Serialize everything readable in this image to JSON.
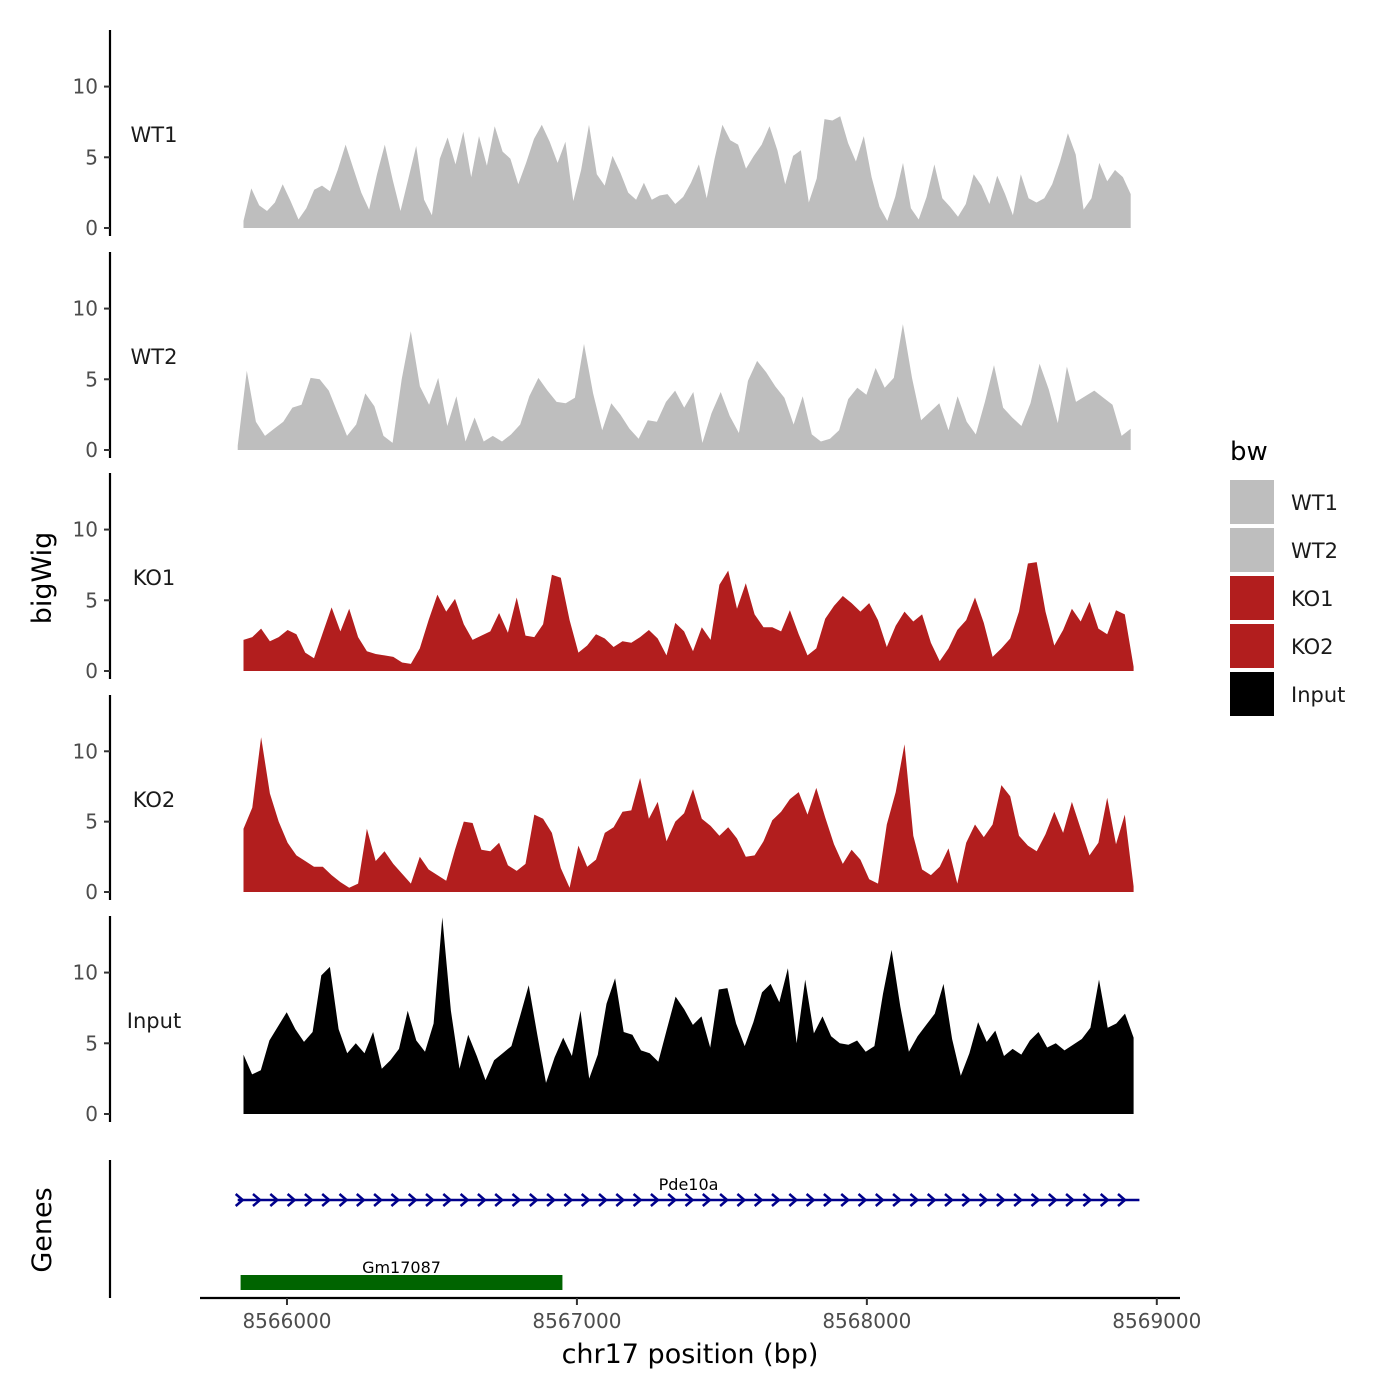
{
  "chart_data": {
    "type": "area",
    "xlabel": "chr17 position (bp)",
    "ylabel": "bigWig",
    "genes_label": "Genes",
    "xlim": [
      8565700,
      8569080
    ],
    "xticks": [
      "8566000",
      "8567000",
      "8568000",
      "8569000"
    ],
    "xtick_values": [
      8566000,
      8567000,
      8568000,
      8569000
    ],
    "ylim": [
      0,
      14
    ],
    "yticks": [
      "0",
      "5",
      "10"
    ],
    "ytick_values": [
      0,
      5,
      10
    ],
    "grid": false,
    "legend": {
      "title": "bw",
      "position": "right",
      "entries": [
        {
          "label": "WT1",
          "color": "#bebebe"
        },
        {
          "label": "WT2",
          "color": "#bebebe"
        },
        {
          "label": "KO1",
          "color": "#b21e1e"
        },
        {
          "label": "KO2",
          "color": "#b21e1e"
        },
        {
          "label": "Input",
          "color": "#000000"
        }
      ]
    },
    "series": [
      {
        "name": "WT1",
        "color": "#bebebe",
        "x_start": 8565850,
        "x_end": 8568910,
        "values": [
          0.5,
          2.8,
          1.6,
          1.2,
          1.8,
          3.1,
          1.9,
          0.6,
          1.4,
          2.7,
          3.0,
          2.6,
          4.1,
          5.9,
          4.2,
          2.5,
          1.3,
          3.8,
          5.9,
          3.4,
          1.2,
          3.5,
          5.8,
          2.0,
          0.9,
          4.9,
          6.4,
          4.5,
          6.8,
          3.6,
          6.5,
          4.4,
          7.2,
          5.4,
          4.9,
          3.1,
          4.6,
          6.3,
          7.3,
          6.1,
          4.6,
          6.1,
          1.9,
          4.1,
          7.3,
          3.8,
          3.0,
          5.1,
          3.9,
          2.5,
          2.0,
          3.2,
          2.0,
          2.3,
          2.4,
          1.7,
          2.2,
          3.2,
          4.5,
          2.1,
          4.9,
          7.3,
          6.2,
          5.9,
          4.2,
          5.1,
          5.9,
          7.2,
          5.5,
          3.1,
          5.1,
          5.5,
          1.8,
          3.5,
          7.7,
          7.6,
          7.9,
          6.0,
          4.7,
          6.5,
          3.6,
          1.5,
          0.5,
          2.2,
          4.6,
          1.4,
          0.6,
          2.2,
          4.5,
          2.1,
          1.5,
          0.8,
          1.7,
          3.8,
          3.0,
          1.7,
          3.7,
          2.4,
          0.9,
          3.8,
          2.1,
          1.8,
          2.1,
          3.1,
          4.7,
          6.7,
          5.2,
          1.3,
          2.1,
          4.6,
          3.3,
          4.1,
          3.6,
          2.4
        ]
      },
      {
        "name": "WT2",
        "color": "#bebebe",
        "x_start": 8565830,
        "x_end": 8568910,
        "values": [
          0.3,
          5.6,
          2.0,
          1.0,
          1.5,
          2.0,
          3.0,
          3.2,
          5.1,
          5.0,
          4.2,
          2.6,
          1.0,
          1.8,
          4.0,
          3.1,
          1.0,
          0.5,
          5.0,
          8.4,
          4.5,
          3.2,
          5.1,
          1.7,
          3.8,
          0.6,
          2.3,
          0.6,
          1.0,
          0.6,
          1.1,
          1.8,
          3.8,
          5.1,
          4.2,
          3.4,
          3.3,
          3.7,
          7.5,
          4.0,
          1.4,
          3.3,
          2.5,
          1.5,
          0.8,
          2.1,
          2.0,
          3.4,
          4.2,
          3.0,
          4.1,
          0.5,
          2.6,
          4.1,
          2.4,
          1.2,
          4.9,
          6.3,
          5.5,
          4.5,
          3.7,
          1.8,
          3.8,
          1.1,
          0.6,
          0.8,
          1.4,
          3.6,
          4.4,
          3.9,
          5.8,
          4.4,
          5.1,
          8.9,
          5.1,
          2.1,
          2.7,
          3.3,
          1.4,
          3.8,
          2.0,
          1.1,
          3.4,
          6.0,
          3.0,
          2.3,
          1.7,
          3.3,
          6.1,
          4.3,
          1.9,
          5.9,
          3.4,
          3.8,
          4.2,
          3.7,
          3.2,
          1.0,
          1.5
        ]
      },
      {
        "name": "KO1",
        "color": "#b21e1e",
        "x_start": 8565850,
        "x_end": 8568920,
        "values": [
          2.2,
          2.4,
          3.0,
          2.1,
          2.4,
          2.9,
          2.6,
          1.3,
          0.9,
          2.7,
          4.5,
          2.8,
          4.4,
          2.4,
          1.4,
          1.2,
          1.1,
          1.0,
          0.6,
          0.5,
          1.6,
          3.6,
          5.4,
          4.2,
          5.1,
          3.3,
          2.2,
          2.5,
          2.8,
          4.1,
          2.7,
          5.2,
          2.5,
          2.4,
          3.3,
          6.8,
          6.6,
          3.6,
          1.3,
          1.8,
          2.6,
          2.3,
          1.7,
          2.1,
          2.0,
          2.4,
          2.9,
          2.3,
          1.1,
          3.4,
          2.8,
          1.4,
          3.1,
          2.2,
          6.1,
          7.1,
          4.4,
          6.2,
          4.0,
          3.1,
          3.1,
          2.8,
          4.3,
          2.6,
          1.1,
          1.6,
          3.7,
          4.6,
          5.3,
          4.8,
          4.2,
          4.8,
          3.6,
          1.7,
          3.2,
          4.2,
          3.5,
          4.0,
          2.0,
          0.7,
          1.6,
          2.9,
          3.6,
          5.2,
          3.4,
          1.0,
          1.6,
          2.3,
          4.2,
          7.6,
          7.7,
          4.2,
          1.8,
          2.9,
          4.4,
          3.5,
          4.9,
          3.0,
          2.6,
          4.3,
          4.0,
          0.3
        ]
      },
      {
        "name": "KO2",
        "color": "#b21e1e",
        "x_start": 8565850,
        "x_end": 8568920,
        "values": [
          4.5,
          6.0,
          11.0,
          7.0,
          5.0,
          3.5,
          2.6,
          2.2,
          1.8,
          1.8,
          1.2,
          0.7,
          0.3,
          0.6,
          4.5,
          2.2,
          2.9,
          2.0,
          1.3,
          0.6,
          2.5,
          1.6,
          1.2,
          0.8,
          3.0,
          5.0,
          4.9,
          3.0,
          2.9,
          3.5,
          1.9,
          1.5,
          2.0,
          5.5,
          5.2,
          4.2,
          1.7,
          0.3,
          3.3,
          1.8,
          2.3,
          4.2,
          4.6,
          5.7,
          5.8,
          8.1,
          5.2,
          6.4,
          3.6,
          5.0,
          5.6,
          7.3,
          5.2,
          4.7,
          4.0,
          4.6,
          3.8,
          2.5,
          2.6,
          3.6,
          5.1,
          5.7,
          6.6,
          7.1,
          5.5,
          7.4,
          5.3,
          3.4,
          2.0,
          3.0,
          2.3,
          0.9,
          0.6,
          4.8,
          7.1,
          10.5,
          4.0,
          1.6,
          1.2,
          1.8,
          3.1,
          0.6,
          3.5,
          4.8,
          3.9,
          4.8,
          7.6,
          6.8,
          4.0,
          3.3,
          2.9,
          4.1,
          5.7,
          4.2,
          6.4,
          4.5,
          2.6,
          3.5,
          6.7,
          3.4,
          5.5,
          0.4
        ]
      },
      {
        "name": "Input",
        "color": "#000000",
        "x_start": 8565850,
        "x_end": 8568920,
        "values": [
          4.2,
          2.8,
          3.1,
          5.2,
          6.2,
          7.2,
          6.0,
          5.1,
          5.8,
          9.8,
          10.4,
          6.0,
          4.3,
          5.0,
          4.3,
          5.8,
          3.2,
          3.8,
          4.6,
          7.3,
          5.2,
          4.4,
          6.4,
          13.9,
          7.3,
          3.2,
          5.6,
          4.1,
          2.4,
          3.8,
          4.3,
          4.8,
          6.9,
          9.1,
          5.6,
          2.2,
          4.0,
          5.4,
          4.1,
          7.3,
          2.5,
          4.2,
          7.8,
          9.6,
          5.8,
          5.6,
          4.5,
          4.3,
          3.7,
          6.0,
          8.3,
          7.4,
          6.3,
          6.9,
          4.7,
          8.8,
          8.9,
          6.4,
          4.8,
          6.5,
          8.6,
          9.2,
          7.9,
          10.3,
          5.0,
          9.5,
          5.7,
          6.9,
          5.5,
          5.0,
          4.9,
          5.2,
          4.4,
          4.8,
          8.5,
          11.6,
          7.6,
          4.4,
          5.5,
          6.3,
          7.1,
          9.2,
          5.3,
          2.7,
          4.3,
          6.5,
          5.1,
          5.9,
          4.1,
          4.6,
          4.2,
          5.2,
          5.8,
          4.7,
          5.0,
          4.5,
          4.9,
          5.3,
          6.1,
          9.5,
          6.1,
          6.4,
          7.1,
          5.4
        ]
      }
    ],
    "genes": [
      {
        "name": "Pde10a",
        "start": 8565830,
        "end": 8568940,
        "color": "#00008b",
        "style": "arrows"
      },
      {
        "name": "Gm17087",
        "start": 8565840,
        "end": 8566950,
        "color": "#006400",
        "style": "box"
      }
    ]
  }
}
